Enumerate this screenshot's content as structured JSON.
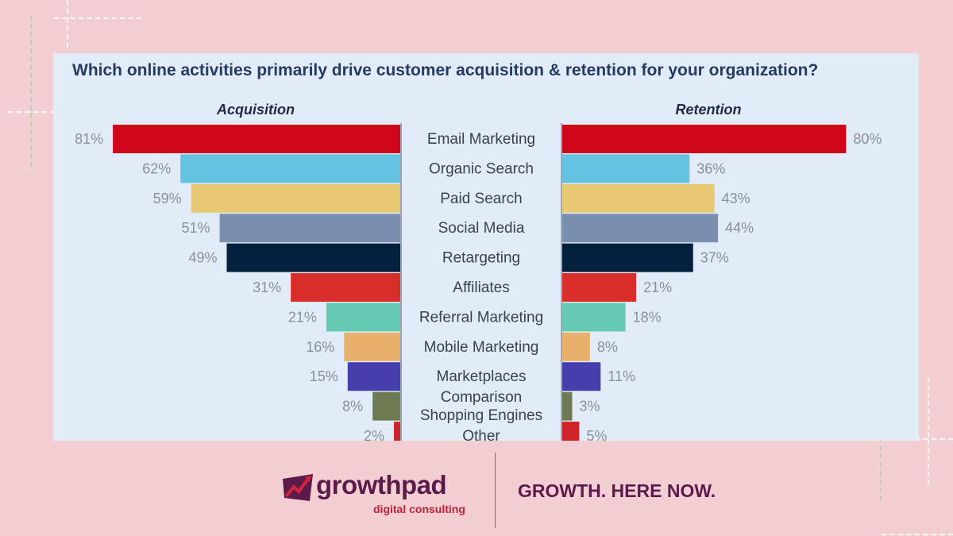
{
  "chart_data": {
    "type": "bar",
    "title": "Which online activities primarily drive customer acquisition & retention for your organization?",
    "categories": [
      [
        "Email Marketing"
      ],
      [
        "Organic Search"
      ],
      [
        "Paid Search"
      ],
      [
        "Social Media"
      ],
      [
        "Retargeting"
      ],
      [
        "Affiliates"
      ],
      [
        "Referral Marketing"
      ],
      [
        "Mobile Marketing"
      ],
      [
        "Marketplaces"
      ],
      [
        "Comparison",
        "Shopping Engines"
      ],
      [
        "Other"
      ]
    ],
    "series": [
      {
        "name": "Acquisition",
        "values": [
          81,
          62,
          59,
          51,
          49,
          31,
          21,
          16,
          15,
          8,
          2
        ],
        "labels": [
          "81%",
          "62%",
          "59%",
          "51%",
          "49%",
          "31%",
          "21%",
          "16%",
          "15%",
          "8%",
          "2%"
        ]
      },
      {
        "name": "Retention",
        "values": [
          80,
          36,
          43,
          44,
          37,
          21,
          18,
          8,
          11,
          3,
          5
        ],
        "labels": [
          "80%",
          "36%",
          "43%",
          "44%",
          "37%",
          "21%",
          "18%",
          "8%",
          "11%",
          "3%",
          "5%"
        ]
      }
    ],
    "colors": [
      "#d0061b",
      "#63c3e1",
      "#e8c873",
      "#7b8fae",
      "#03213d",
      "#d92f2b",
      "#66c9b4",
      "#e8b06b",
      "#473ead",
      "#6e7a52",
      "#d0242a"
    ],
    "xlim": [
      0,
      100
    ],
    "grid": false,
    "legend": "none"
  },
  "footer": {
    "brand_name": "growthpad",
    "brand_sub": "digital consulting",
    "tagline": "GROWTH. HERE NOW."
  },
  "icons": [
    "growthpad-logo-icon"
  ]
}
